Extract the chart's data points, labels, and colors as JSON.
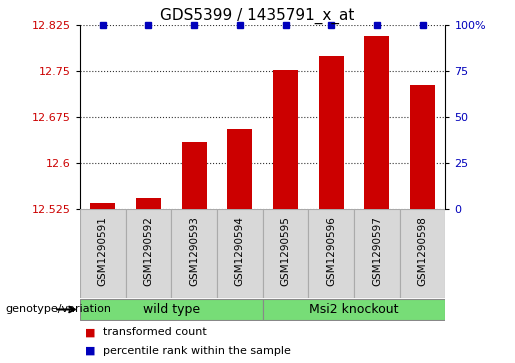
{
  "title": "GDS5399 / 1435791_x_at",
  "samples": [
    "GSM1290591",
    "GSM1290592",
    "GSM1290593",
    "GSM1290594",
    "GSM1290595",
    "GSM1290596",
    "GSM1290597",
    "GSM1290598"
  ],
  "bar_values": [
    12.535,
    12.542,
    12.635,
    12.655,
    12.752,
    12.775,
    12.808,
    12.728
  ],
  "percentile_values": [
    100,
    100,
    100,
    100,
    100,
    100,
    100,
    100
  ],
  "ylim_left": [
    12.525,
    12.825
  ],
  "ylim_right": [
    0,
    100
  ],
  "yticks_left": [
    12.525,
    12.6,
    12.675,
    12.75,
    12.825
  ],
  "ytick_labels_left": [
    "12.525",
    "12.6",
    "12.675",
    "12.75",
    "12.825"
  ],
  "yticks_right": [
    0,
    25,
    50,
    75,
    100
  ],
  "ytick_labels_right": [
    "0",
    "25",
    "50",
    "75",
    "100%"
  ],
  "bar_color": "#cc0000",
  "dot_color": "#0000bb",
  "grid_color": "#333333",
  "groups": [
    {
      "label": "wild type",
      "start": 0,
      "end": 3,
      "color": "#77dd77"
    },
    {
      "label": "Msi2 knockout",
      "start": 4,
      "end": 7,
      "color": "#77dd77"
    }
  ],
  "group_row_label": "genotype/variation",
  "legend_items": [
    {
      "color": "#cc0000",
      "label": "transformed count"
    },
    {
      "color": "#0000bb",
      "label": "percentile rank within the sample"
    }
  ],
  "bar_width": 0.55,
  "tick_label_color_left": "#cc0000",
  "tick_label_color_right": "#0000bb",
  "sample_box_color": "#d8d8d8",
  "plot_bg": "#ffffff"
}
